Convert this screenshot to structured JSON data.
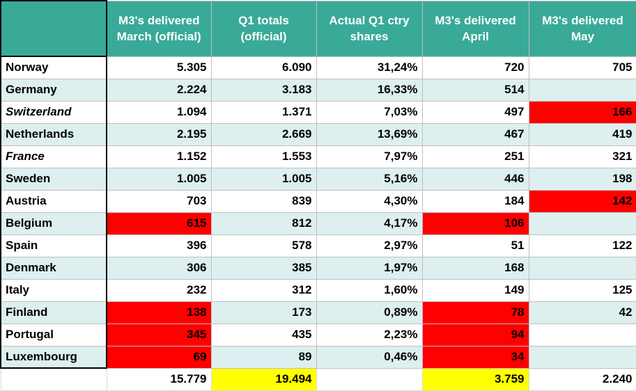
{
  "headers": [
    "",
    "M3's delivered March (official)",
    "Q1 totals (official)",
    "Actual Q1 ctry shares",
    "M3's delivered April",
    "M3's delivered May"
  ],
  "rows": [
    {
      "country": "Norway",
      "march": "5.305",
      "q1": "6.090",
      "share": "31,24%",
      "april": "720",
      "may": "705"
    },
    {
      "country": "Germany",
      "march": "2.224",
      "q1": "3.183",
      "share": "16,33%",
      "april": "514",
      "may": ""
    },
    {
      "country": "Switzerland",
      "march": "1.094",
      "q1": "1.371",
      "share": "7,03%",
      "april": "497",
      "may": "166"
    },
    {
      "country": "Netherlands",
      "march": "2.195",
      "q1": "2.669",
      "share": "13,69%",
      "april": "467",
      "may": "419"
    },
    {
      "country": "France",
      "march": "1.152",
      "q1": "1.553",
      "share": "7,97%",
      "april": "251",
      "may": "321"
    },
    {
      "country": "Sweden",
      "march": "1.005",
      "q1": "1.005",
      "share": "5,16%",
      "april": "446",
      "may": "198"
    },
    {
      "country": "Austria",
      "march": "703",
      "q1": "839",
      "share": "4,30%",
      "april": "184",
      "may": "142"
    },
    {
      "country": "Belgium",
      "march": "615",
      "q1": "812",
      "share": "4,17%",
      "april": "106",
      "may": ""
    },
    {
      "country": "Spain",
      "march": "396",
      "q1": "578",
      "share": "2,97%",
      "april": "51",
      "may": "122"
    },
    {
      "country": "Denmark",
      "march": "306",
      "q1": "385",
      "share": "1,97%",
      "april": "168",
      "may": ""
    },
    {
      "country": "Italy",
      "march": "232",
      "q1": "312",
      "share": "1,60%",
      "april": "149",
      "may": "125"
    },
    {
      "country": "Finland",
      "march": "138",
      "q1": "173",
      "share": "0,89%",
      "april": "78",
      "may": "42"
    },
    {
      "country": "Portugal",
      "march": "345",
      "q1": "435",
      "share": "2,23%",
      "april": "94",
      "may": ""
    },
    {
      "country": "Luxembourg",
      "march": "69",
      "q1": "89",
      "share": "0,46%",
      "april": "34",
      "may": ""
    }
  ],
  "totals": {
    "march": "15.779",
    "q1": "19.494",
    "share": "",
    "april": "3.759",
    "may": "2.240"
  },
  "highlight_colors": {
    "red": "#ff0000",
    "yellow": "#ffff00",
    "header": "#39aa98",
    "band": "#ddefef"
  }
}
